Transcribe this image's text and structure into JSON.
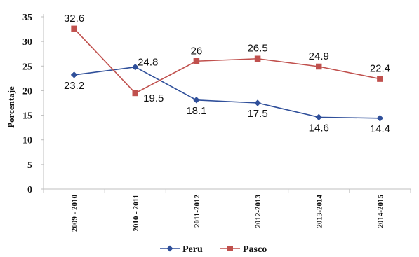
{
  "chart_data": {
    "type": "line",
    "title": "",
    "xlabel": "",
    "ylabel": "Porcentaje",
    "categories": [
      "2009 - 2010",
      "2010 - 2011",
      "2011-2012",
      "2012-2013",
      "2013-2014",
      "2014-2015"
    ],
    "ylim": [
      0,
      35
    ],
    "yticks": [
      0,
      5,
      10,
      15,
      20,
      25,
      30,
      35
    ],
    "grid": false,
    "legend_position": "bottom",
    "series": [
      {
        "name": "Peru",
        "color": "#2f4f9a",
        "marker": "diamond",
        "values": [
          23.2,
          24.8,
          18.1,
          17.5,
          14.6,
          14.4
        ],
        "labels": [
          "23.2",
          "24.8",
          "18.1",
          "17.5",
          "14.6",
          "14.4"
        ]
      },
      {
        "name": "Pasco",
        "color": "#c0504d",
        "marker": "square",
        "values": [
          32.6,
          19.5,
          26.0,
          26.5,
          24.9,
          22.4
        ],
        "labels": [
          "32.6",
          "19.5",
          "26",
          "26.5",
          "24.9",
          "22.4"
        ]
      }
    ]
  }
}
